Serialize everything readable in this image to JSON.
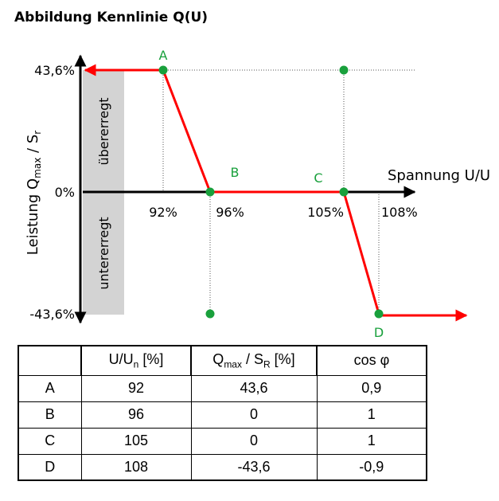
{
  "title": "Abbildung Kennlinie Q(U)",
  "chart_data": {
    "type": "line",
    "xlabel": "Spannung U/U",
    "ylabel": "Leistung Q",
    "ylabel_sub": "max",
    "ylabel_mid": " / S",
    "ylabel_sub2": "r",
    "region_upper": "übererregt",
    "region_lower": "untererregt",
    "x_ticks": [
      "92%",
      "96%",
      "105%",
      "108%"
    ],
    "x_tick_values": [
      92,
      96,
      105,
      108
    ],
    "y_ticks": [
      "43,6%",
      "0%",
      "-43,6%"
    ],
    "y_tick_values": [
      43.6,
      0,
      -43.6
    ],
    "series": [
      {
        "x": [
          92,
          96,
          105,
          108
        ],
        "y": [
          43.6,
          0,
          0,
          -43.6
        ],
        "color": "#ff0000"
      }
    ],
    "points": [
      {
        "label": "A",
        "x": 92,
        "y": 43.6
      },
      {
        "label": "B",
        "x": 96,
        "y": 0
      },
      {
        "label": "C",
        "x": 105,
        "y": 0
      },
      {
        "label": "D",
        "x": 108,
        "y": -43.6
      }
    ],
    "extra_markers": [
      {
        "x": 105,
        "y": 43.6
      },
      {
        "x": 96,
        "y": -43.6
      }
    ],
    "colors": {
      "line": "#ff0000",
      "marker": "#19a03c",
      "point_label": "#19a03c",
      "region": "#d3d3d3"
    }
  },
  "table": {
    "headers": [
      {
        "main": "",
        "sub": "",
        "rest": ""
      },
      {
        "main": "U/U",
        "sub": "n",
        "rest": " [%]"
      },
      {
        "main": "Q",
        "sub": "max",
        "mid": " / S",
        "sub2": "R",
        "rest": " [%]"
      },
      {
        "main": "cos φ",
        "sub": "",
        "rest": ""
      }
    ],
    "rows": [
      [
        "A",
        "92",
        "43,6",
        "0,9"
      ],
      [
        "B",
        "96",
        "0",
        "1"
      ],
      [
        "C",
        "105",
        "0",
        "1"
      ],
      [
        "D",
        "108",
        "-43,6",
        "-0,9"
      ]
    ]
  }
}
